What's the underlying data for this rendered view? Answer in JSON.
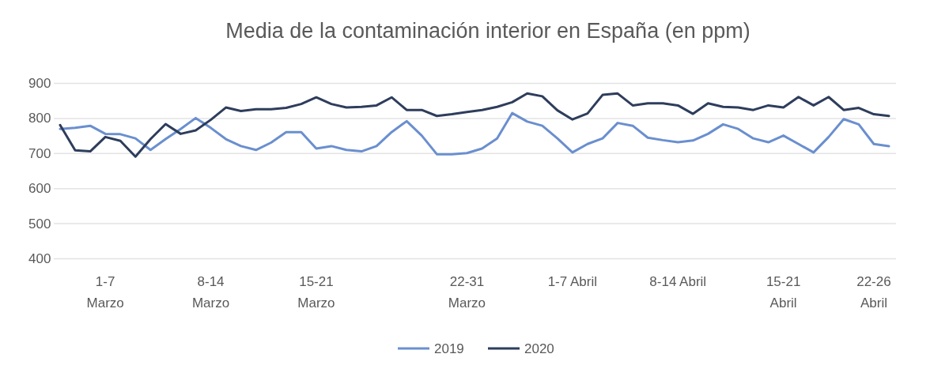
{
  "chart_data": {
    "type": "line",
    "title": "Media de la contaminación interior en España (en ppm)",
    "categories": [
      null,
      null,
      null,
      "1-7\nMarzo",
      null,
      null,
      null,
      null,
      null,
      null,
      "8-14\nMarzo",
      null,
      null,
      null,
      null,
      null,
      null,
      "15-21\nMarzo",
      null,
      null,
      null,
      null,
      null,
      null,
      null,
      null,
      null,
      "22-31\nMarzo",
      null,
      null,
      null,
      null,
      null,
      null,
      "1-7 Abril",
      null,
      null,
      null,
      null,
      null,
      null,
      "8-14 Abril",
      null,
      null,
      null,
      null,
      null,
      null,
      "15-21\nAbril",
      null,
      null,
      null,
      null,
      null,
      "22-26\nAbril",
      null
    ],
    "series": [
      {
        "name": "2019",
        "color": "#6a8fcf",
        "values": [
          769,
          772,
          778,
          755,
          754,
          742,
          709,
          740,
          769,
          800,
          772,
          740,
          720,
          709,
          730,
          760,
          760,
          713,
          720,
          709,
          705,
          720,
          760,
          791,
          750,
          697,
          697,
          700,
          713,
          742,
          814,
          790,
          778,
          742,
          702,
          726,
          742,
          786,
          778,
          744,
          737,
          731,
          736,
          755,
          782,
          769,
          742,
          731,
          750,
          726,
          702,
          746,
          797,
          782,
          726,
          720
        ]
      },
      {
        "name": "2020",
        "color": "#2e3d5c",
        "values": [
          780,
          708,
          705,
          746,
          735,
          690,
          740,
          783,
          755,
          765,
          795,
          830,
          820,
          825,
          825,
          829,
          840,
          859,
          840,
          830,
          832,
          836,
          859,
          823,
          823,
          806,
          811,
          817,
          823,
          832,
          845,
          870,
          862,
          822,
          796,
          813,
          866,
          870,
          836,
          842,
          842,
          836,
          812,
          842,
          832,
          830,
          823,
          836,
          830,
          860,
          836,
          860,
          823,
          829,
          811,
          806
        ]
      }
    ],
    "ylim": [
      400,
      900
    ],
    "yticks": [
      400,
      500,
      600,
      700,
      800,
      900
    ],
    "grid": "y",
    "legend": "bottom",
    "marker": "none",
    "line_style": "solid"
  }
}
